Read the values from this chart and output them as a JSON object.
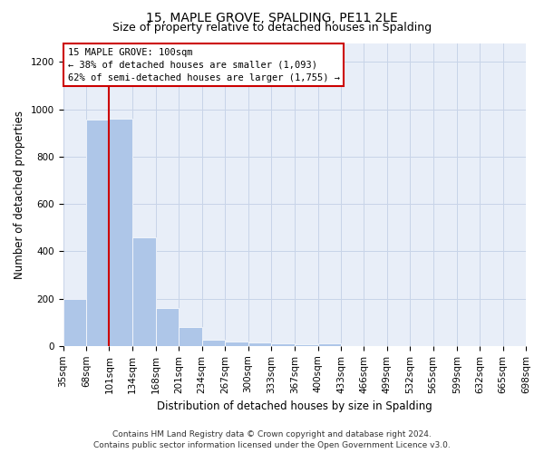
{
  "title": "15, MAPLE GROVE, SPALDING, PE11 2LE",
  "subtitle": "Size of property relative to detached houses in Spalding",
  "xlabel": "Distribution of detached houses by size in Spalding",
  "ylabel": "Number of detached properties",
  "footer_line1": "Contains HM Land Registry data © Crown copyright and database right 2024.",
  "footer_line2": "Contains public sector information licensed under the Open Government Licence v3.0.",
  "annotation_title": "15 MAPLE GROVE: 100sqm",
  "annotation_line1": "← 38% of detached houses are smaller (1,093)",
  "annotation_line2": "62% of semi-detached houses are larger (1,755) →",
  "bar_edges": [
    35,
    68,
    101,
    134,
    168,
    201,
    234,
    267,
    300,
    333,
    367,
    400,
    433,
    466,
    499,
    532,
    565,
    599,
    632,
    665,
    698
  ],
  "bar_heights": [
    200,
    955,
    960,
    460,
    160,
    80,
    25,
    18,
    15,
    12,
    8,
    10,
    0,
    0,
    0,
    0,
    0,
    0,
    0,
    0
  ],
  "bar_color": "#aec6e8",
  "bar_edge_color": "white",
  "grid_color": "#c8d4e8",
  "background_color": "#e8eef8",
  "vline_x": 101,
  "vline_color": "#cc0000",
  "annotation_box_color": "#cc0000",
  "ylim": [
    0,
    1280
  ],
  "yticks": [
    0,
    200,
    400,
    600,
    800,
    1000,
    1200
  ],
  "title_fontsize": 10,
  "subtitle_fontsize": 9,
  "xlabel_fontsize": 8.5,
  "ylabel_fontsize": 8.5,
  "tick_fontsize": 7.5,
  "annotation_fontsize": 7.5,
  "footer_fontsize": 6.5
}
